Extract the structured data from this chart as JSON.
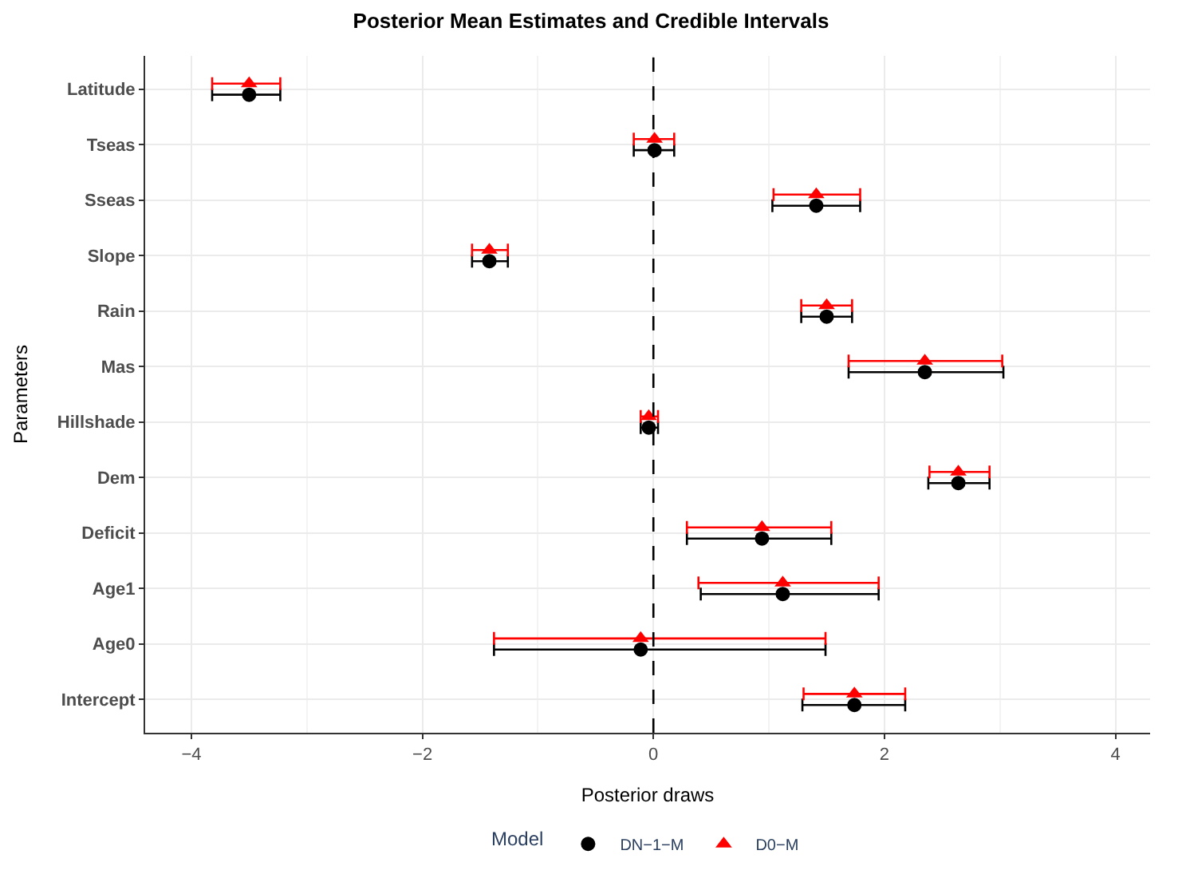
{
  "chart_data": {
    "type": "scatter",
    "orientation": "horizontal",
    "title": "Posterior Mean Estimates and Credible Intervals",
    "xlabel": "Posterior draws",
    "ylabel": "Parameters",
    "legend_title": "Model",
    "categories": [
      "Latitude",
      "Tseas",
      "Sseas",
      "Slope",
      "Rain",
      "Mas",
      "Hillshade",
      "Dem",
      "Deficit",
      "Age1",
      "Age0",
      "Intercept"
    ],
    "series": [
      {
        "name": "DN−1−M",
        "color": "#000000",
        "marker": "circle",
        "values": [
          -3.5,
          0.01,
          1.41,
          -1.42,
          1.5,
          2.35,
          -0.04,
          2.64,
          0.94,
          1.12,
          -0.11,
          1.74
        ],
        "errors": [
          [
            -3.82,
            -3.23
          ],
          [
            -0.17,
            0.18
          ],
          [
            1.03,
            1.79
          ],
          [
            -1.57,
            -1.26
          ],
          [
            1.28,
            1.72
          ],
          [
            1.69,
            3.03
          ],
          [
            -0.11,
            0.04
          ],
          [
            2.38,
            2.91
          ],
          [
            0.29,
            1.54
          ],
          [
            0.41,
            1.95
          ],
          [
            -1.38,
            1.49
          ],
          [
            1.29,
            2.18
          ]
        ]
      },
      {
        "name": "D0−M",
        "color": "#ff0000",
        "marker": "triangle",
        "values": [
          -3.5,
          0.01,
          1.41,
          -1.42,
          1.5,
          2.35,
          -0.04,
          2.64,
          0.94,
          1.12,
          -0.11,
          1.74
        ],
        "errors": [
          [
            -3.82,
            -3.23
          ],
          [
            -0.17,
            0.18
          ],
          [
            1.04,
            1.79
          ],
          [
            -1.57,
            -1.26
          ],
          [
            1.28,
            1.72
          ],
          [
            1.69,
            3.02
          ],
          [
            -0.11,
            0.04
          ],
          [
            2.39,
            2.91
          ],
          [
            0.29,
            1.54
          ],
          [
            0.39,
            1.95
          ],
          [
            -1.38,
            1.49
          ],
          [
            1.3,
            2.18
          ]
        ]
      }
    ],
    "xlim": [
      -4.4,
      4.3
    ],
    "xticks": [
      -4,
      -2,
      0,
      2,
      4
    ],
    "ref_lines": [
      {
        "axis": "x",
        "value": 0,
        "color": "#000000",
        "line_style": "dashed"
      }
    ],
    "grid": true,
    "legend": "bottom"
  }
}
